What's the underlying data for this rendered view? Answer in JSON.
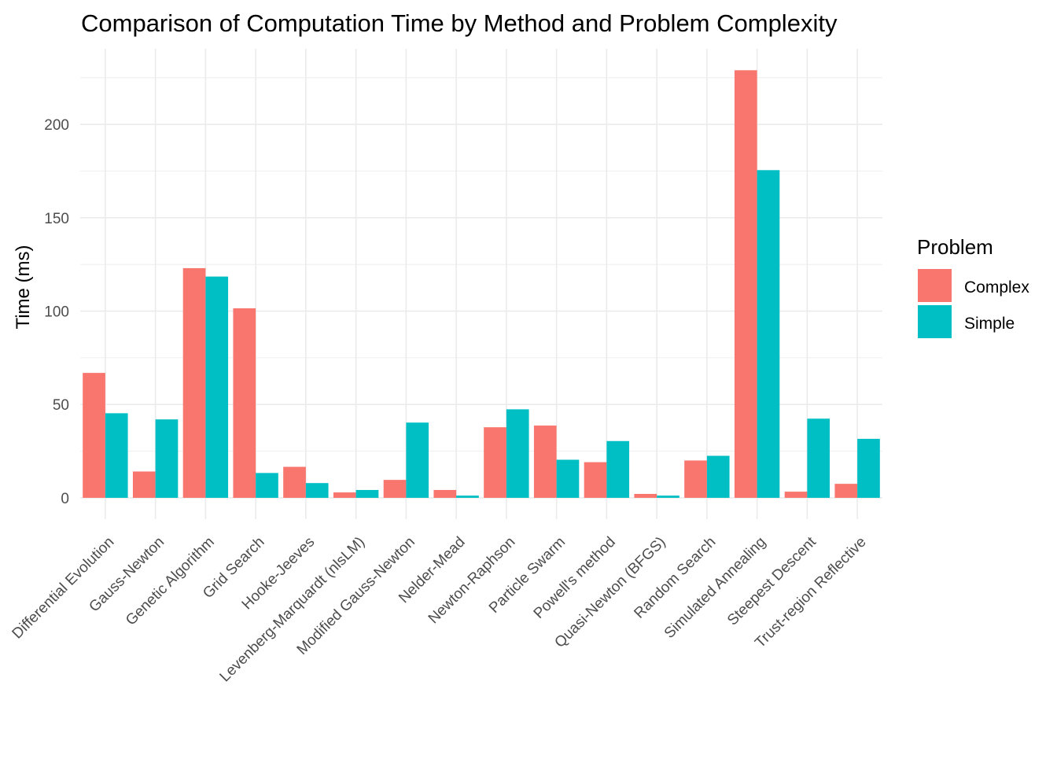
{
  "chart_data": {
    "type": "bar",
    "title": "Comparison of Computation Time by Method and Problem Complexity",
    "xlabel": "",
    "ylabel": "Time (ms)",
    "ylim": [
      -11.4,
      240.5
    ],
    "yticks": [
      0,
      50,
      100,
      150,
      200
    ],
    "grid": true,
    "legend": {
      "title": "Problem",
      "placement": "right"
    },
    "categories": [
      "Differential Evolution",
      "Gauss-Newton",
      "Genetic Algorithm",
      "Grid Search",
      "Hooke-Jeeves",
      "Levenberg-Marquardt (nlsLM)",
      "Modified Gauss-Newton",
      "Nelder-Mead",
      "Newton-Raphson",
      "Particle Swarm",
      "Powell's method",
      "Quasi-Newton (BFGS)",
      "Random Search",
      "Simulated Annealing",
      "Steepest Descent",
      "Trust-region Reflective"
    ],
    "series": [
      {
        "name": "Complex",
        "color": "#F8766D",
        "values": [
          66.9,
          14.1,
          123,
          101.5,
          16.6,
          2.9,
          9.6,
          4.2,
          37.8,
          38.7,
          19.1,
          2.1,
          20,
          229,
          3.3,
          7.5
        ]
      },
      {
        "name": "Simple",
        "color": "#00BFC4",
        "values": [
          45.3,
          42,
          118.5,
          13.3,
          7.9,
          4.2,
          40.3,
          1.2,
          47.4,
          20.4,
          30.4,
          1.2,
          22.5,
          175.5,
          42.4,
          31.6
        ]
      }
    ]
  }
}
